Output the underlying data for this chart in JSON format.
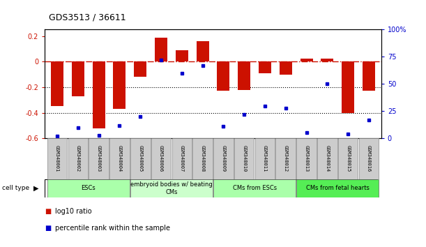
{
  "title": "GDS3513 / 36611",
  "samples": [
    "GSM348001",
    "GSM348002",
    "GSM348003",
    "GSM348004",
    "GSM348005",
    "GSM348006",
    "GSM348007",
    "GSM348008",
    "GSM348009",
    "GSM348010",
    "GSM348011",
    "GSM348012",
    "GSM348013",
    "GSM348014",
    "GSM348015",
    "GSM348016"
  ],
  "log10_ratio": [
    -0.35,
    -0.27,
    -0.52,
    -0.37,
    -0.12,
    0.185,
    0.09,
    0.16,
    -0.23,
    -0.22,
    -0.09,
    -0.1,
    0.025,
    0.025,
    -0.4,
    -0.23
  ],
  "percentile_rank": [
    2,
    10,
    3,
    12,
    20,
    72,
    60,
    67,
    11,
    22,
    30,
    28,
    5,
    50,
    4,
    17
  ],
  "cell_type_groups": [
    {
      "label": "ESCs",
      "start": 0,
      "end": 4,
      "color": "#aaffaa"
    },
    {
      "label": "embryoid bodies w/ beating\nCMs",
      "start": 4,
      "end": 8,
      "color": "#ccffcc"
    },
    {
      "label": "CMs from ESCs",
      "start": 8,
      "end": 12,
      "color": "#aaffaa"
    },
    {
      "label": "CMs from fetal hearts",
      "start": 12,
      "end": 16,
      "color": "#55ee55"
    }
  ],
  "ylim_left": [
    -0.6,
    0.25
  ],
  "ylim_right": [
    0,
    100
  ],
  "bar_color": "#cc1100",
  "dot_color": "#0000cc",
  "hline_color": "#cc1100",
  "grid_color": "#000000",
  "background_color": "#ffffff",
  "left_yticks": [
    0.2,
    0.0,
    -0.2,
    -0.4,
    -0.6
  ],
  "left_ytick_labels": [
    "0.2",
    "0",
    "-0.2",
    "-0.4",
    "-0.6"
  ],
  "right_yticks": [
    100,
    75,
    50,
    25,
    0
  ],
  "right_ytick_labels": [
    "100%",
    "75",
    "50",
    "25",
    "0"
  ]
}
